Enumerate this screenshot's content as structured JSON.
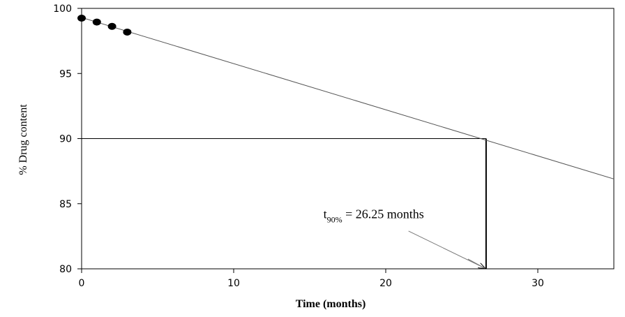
{
  "chart_data": {
    "type": "scatter",
    "title": "",
    "xlabel": "Time (months)",
    "ylabel": "% Drug content",
    "xlim": [
      0,
      35
    ],
    "ylim": [
      80,
      100
    ],
    "xticks": [
      0,
      10,
      20,
      30
    ],
    "yticks": [
      80,
      85,
      90,
      95,
      100
    ],
    "grid": false,
    "series": [
      {
        "kind": "points",
        "x": [
          0,
          1,
          2,
          3
        ],
        "y": [
          99.25,
          98.95,
          98.62,
          98.18
        ]
      },
      {
        "kind": "regression-line",
        "x": [
          0,
          35
        ],
        "y": [
          99.3,
          86.9
        ]
      }
    ],
    "reference_lines": {
      "y_value": 90,
      "x_value": 26.6
    },
    "annotation": {
      "prefix": "t",
      "subscript": "90%",
      "text": " = 26.25 months",
      "arrow_from": [
        21.5,
        82.9
      ],
      "arrow_to": [
        26.6,
        80
      ],
      "text_at": [
        15.9,
        83.9
      ]
    }
  }
}
